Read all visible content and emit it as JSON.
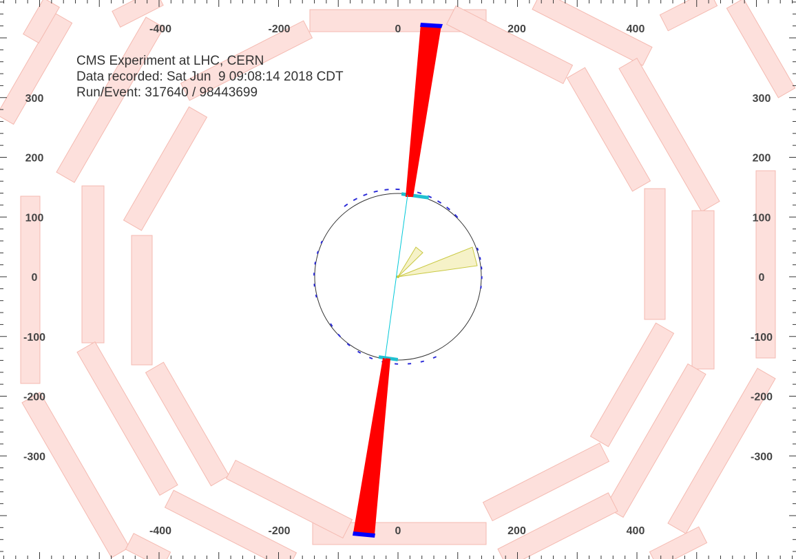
{
  "info": {
    "experiment": "CMS Experiment at LHC, CERN",
    "data_recorded": "Data recorded: Sat Jun  9 09:08:14 2018 CDT",
    "run_event": "Run/Event: 317640 / 98443699"
  },
  "axes": {
    "x_ticks": [
      -400,
      -200,
      0,
      200,
      400
    ],
    "y_ticks": [
      300,
      200,
      100,
      0,
      -100,
      -200,
      -300
    ]
  },
  "colors": {
    "muon_chamber_fill": "#fde0dc",
    "muon_chamber_stroke": "#f4b9b0",
    "energy_tower": "#ff0000",
    "energy_tower_edge": "#0000ff",
    "track": "#00c8d8",
    "jet_cone_fill": "#f6f2c8",
    "jet_cone_stroke": "#c8c840",
    "tracker_circle": "#2b2bd8",
    "tick": "#333333"
  }
}
